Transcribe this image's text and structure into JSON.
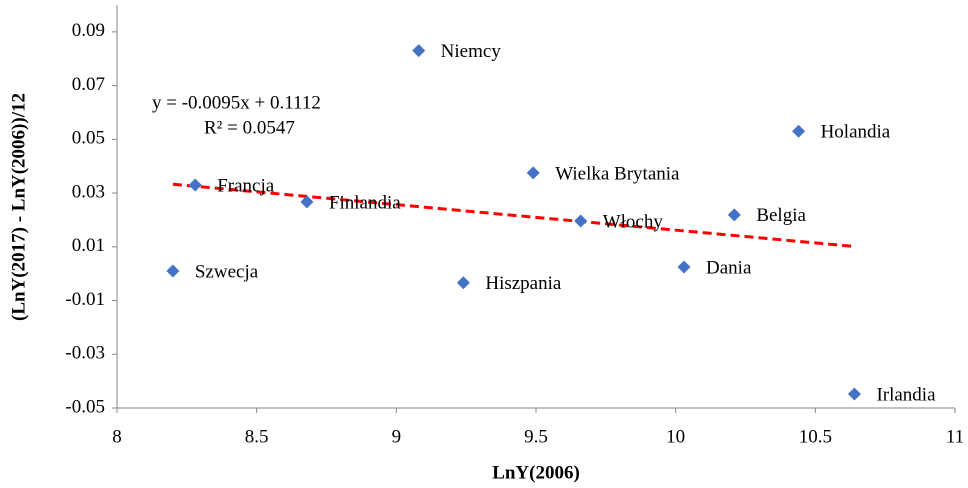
{
  "chart_data": {
    "type": "scatter",
    "x_label": "LnY(2006)",
    "y_label": "(LnY(2017) - LnY(2006))/12",
    "labels": [
      "Niemcy",
      "Holandia",
      "Wielka Brytania",
      "Francja",
      "Finlandia",
      "Włochy",
      "Belgia",
      "Dania",
      "Szwecja",
      "Hiszpania",
      "Irlandia"
    ],
    "x": [
      9.08,
      10.44,
      9.49,
      8.28,
      8.68,
      9.66,
      10.21,
      10.03,
      8.2,
      9.24,
      10.64
    ],
    "values": [
      0.083,
      0.053,
      0.0375,
      0.033,
      0.0267,
      0.0196,
      0.0219,
      0.0025,
      0.001,
      -0.0034,
      -0.0448
    ],
    "color": "#4472c4",
    "trendline": {
      "label": "y = -0.0095x + 0.1112",
      "r2_label": "R² = 0.0547",
      "slope": -0.0095,
      "intercept": 0.1112,
      "color": "#ff0000"
    },
    "xlim": [
      8,
      11
    ],
    "xticks": [
      8,
      8.5,
      9,
      9.5,
      10,
      10.5,
      11
    ],
    "ylim": [
      -0.05,
      0.1
    ],
    "yticks": [
      -0.05,
      -0.03,
      -0.01,
      0.01,
      0.03,
      0.05,
      0.07,
      0.09
    ],
    "grid": false
  }
}
